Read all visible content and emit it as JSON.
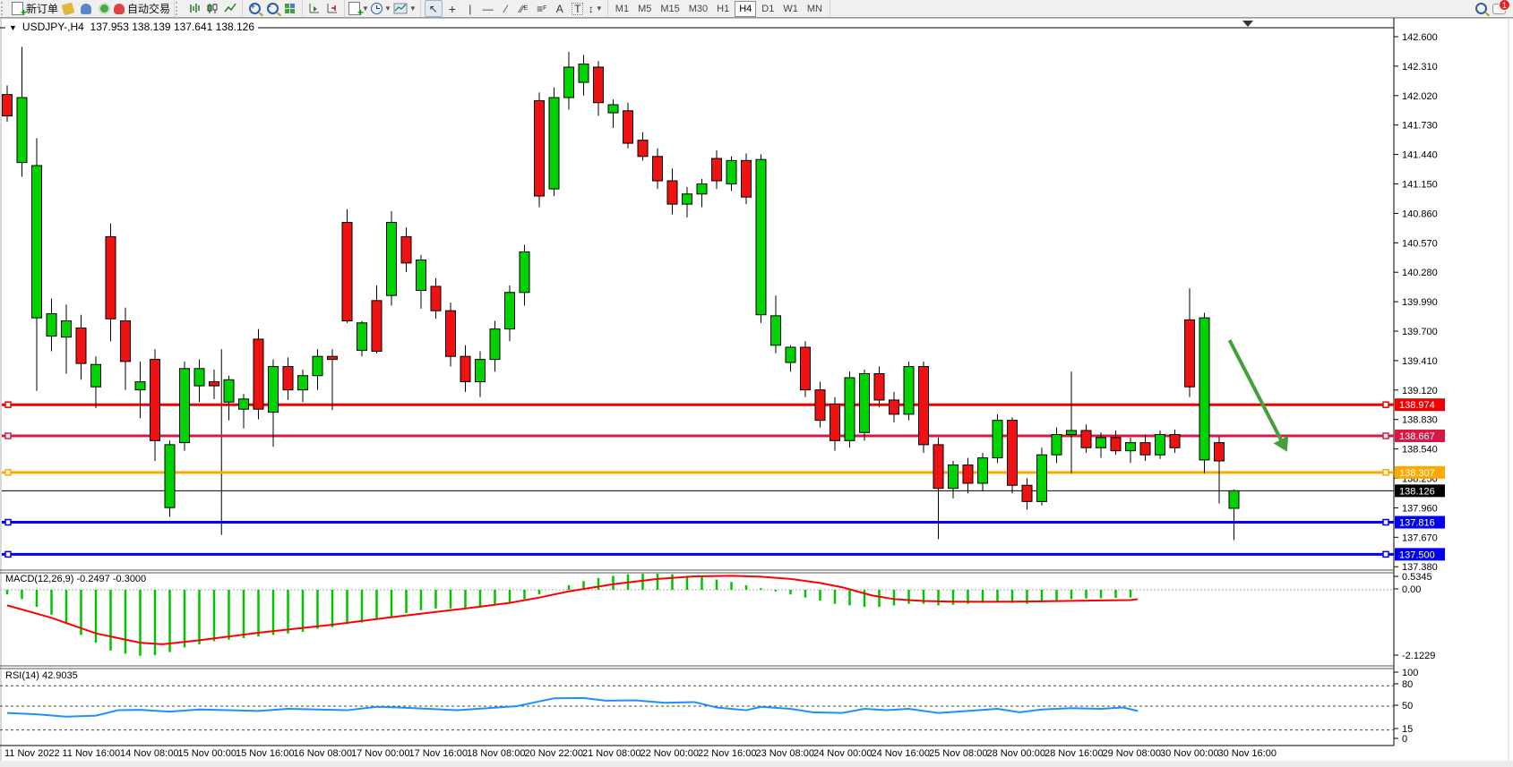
{
  "toolbar": {
    "new_order_label": "新订单",
    "autotrade_label": "自动交易",
    "timeframes": [
      "M1",
      "M5",
      "M15",
      "M30",
      "H1",
      "H4",
      "D1",
      "W1",
      "MN"
    ],
    "active_timeframe": "H4",
    "chat_badge": "1",
    "drawing_tools": {
      "channel_suffix": "E",
      "fibo_suffix": "F",
      "text_tool": "A",
      "label_tool": "T"
    }
  },
  "chart": {
    "symbol_period": "USDJPY-,H4",
    "ohlc_display": "137.953 138.139 137.641 138.126"
  },
  "indicators": {
    "macd": {
      "name": "MACD(12,26,9)",
      "value_main": "-0.2497",
      "value_signal": "-0.3000"
    },
    "rsi": {
      "name": "RSI(14)",
      "value": "42.9035"
    }
  },
  "chart_data": {
    "type": "candlestick",
    "symbol": "USDJPY-",
    "period": "H4",
    "current_bar": {
      "open": 137.953,
      "high": 138.139,
      "low": 137.641,
      "close": 138.126
    },
    "price_axis_labels": [
      "142.600",
      "142.310",
      "142.020",
      "141.730",
      "141.440",
      "141.150",
      "140.860",
      "140.570",
      "140.280",
      "139.990",
      "139.700",
      "139.410",
      "139.120",
      "138.830",
      "138.540",
      "138.250",
      "137.960",
      "137.670",
      "137.380"
    ],
    "time_labels": [
      "11 Nov 2022",
      "11 Nov 16:00",
      "14 Nov 08:00",
      "15 Nov 00:00",
      "15 Nov 16:00",
      "16 Nov 08:00",
      "17 Nov 00:00",
      "17 Nov 16:00",
      "18 Nov 08:00",
      "20 Nov 22:00",
      "21 Nov 08:00",
      "22 Nov 00:00",
      "22 Nov 16:00",
      "23 Nov 08:00",
      "24 Nov 00:00",
      "24 Nov 16:00",
      "25 Nov 08:00",
      "28 Nov 00:00",
      "28 Nov 16:00",
      "29 Nov 08:00",
      "30 Nov 00:00",
      "30 Nov 16:00"
    ],
    "candles": [
      [
        142.03,
        142.12,
        141.76,
        141.82
      ],
      [
        141.36,
        142.5,
        141.22,
        142.0
      ],
      [
        139.83,
        141.6,
        139.11,
        141.33
      ],
      [
        139.65,
        140.02,
        139.5,
        139.87
      ],
      [
        139.64,
        139.96,
        139.28,
        139.8
      ],
      [
        139.73,
        139.86,
        139.22,
        139.38
      ],
      [
        139.15,
        139.45,
        138.94,
        139.37
      ],
      [
        140.63,
        140.76,
        139.6,
        139.82
      ],
      [
        139.8,
        139.93,
        139.12,
        139.4
      ],
      [
        139.12,
        139.4,
        138.84,
        139.2
      ],
      [
        139.42,
        139.52,
        138.42,
        138.62
      ],
      [
        137.96,
        138.62,
        137.87,
        138.58
      ],
      [
        138.6,
        139.4,
        138.52,
        139.33
      ],
      [
        139.16,
        139.42,
        139.0,
        139.33
      ],
      [
        139.2,
        139.32,
        139.03,
        139.16
      ],
      [
        139.0,
        139.26,
        138.82,
        139.22
      ],
      [
        138.93,
        139.08,
        138.74,
        139.03
      ],
      [
        139.62,
        139.72,
        138.83,
        138.93
      ],
      [
        138.9,
        139.42,
        138.56,
        139.35
      ],
      [
        139.35,
        139.44,
        139.02,
        139.12
      ],
      [
        139.12,
        139.32,
        139.0,
        139.26
      ],
      [
        139.26,
        139.52,
        139.12,
        139.45
      ],
      [
        139.45,
        139.52,
        138.92,
        139.42
      ],
      [
        140.77,
        140.9,
        139.78,
        139.8
      ],
      [
        139.51,
        139.8,
        139.45,
        139.78
      ],
      [
        140.0,
        140.15,
        139.48,
        139.5
      ],
      [
        140.05,
        140.88,
        139.95,
        140.77
      ],
      [
        140.63,
        140.72,
        140.28,
        140.37
      ],
      [
        140.1,
        140.45,
        139.92,
        140.4
      ],
      [
        140.14,
        140.22,
        139.82,
        139.9
      ],
      [
        139.9,
        139.98,
        139.35,
        139.45
      ],
      [
        139.45,
        139.56,
        139.1,
        139.2
      ],
      [
        139.2,
        139.5,
        139.05,
        139.42
      ],
      [
        139.42,
        139.8,
        139.3,
        139.72
      ],
      [
        139.72,
        140.15,
        139.6,
        140.08
      ],
      [
        140.08,
        140.55,
        139.95,
        140.48
      ],
      [
        141.97,
        142.05,
        140.92,
        141.03
      ],
      [
        141.1,
        142.1,
        141.03,
        142.0
      ],
      [
        142.0,
        142.45,
        141.88,
        142.3
      ],
      [
        142.15,
        142.42,
        142.02,
        142.33
      ],
      [
        142.3,
        142.36,
        141.82,
        141.95
      ],
      [
        141.85,
        141.98,
        141.7,
        141.93
      ],
      [
        141.87,
        141.95,
        141.5,
        141.55
      ],
      [
        141.58,
        141.66,
        141.38,
        141.42
      ],
      [
        141.42,
        141.5,
        141.1,
        141.18
      ],
      [
        141.18,
        141.3,
        140.85,
        140.95
      ],
      [
        140.95,
        141.12,
        140.82,
        141.05
      ],
      [
        141.05,
        141.2,
        140.92,
        141.15
      ],
      [
        141.4,
        141.48,
        141.1,
        141.18
      ],
      [
        141.15,
        141.42,
        141.08,
        141.38
      ],
      [
        141.38,
        141.45,
        140.95,
        141.02
      ],
      [
        139.86,
        141.44,
        139.78,
        141.39
      ],
      [
        139.56,
        140.05,
        139.48,
        139.85
      ],
      [
        139.39,
        139.56,
        139.3,
        139.54
      ],
      [
        139.54,
        139.6,
        139.05,
        139.12
      ],
      [
        139.12,
        139.2,
        138.75,
        138.82
      ],
      [
        138.98,
        139.05,
        138.52,
        138.62
      ],
      [
        138.62,
        139.3,
        138.55,
        139.24
      ],
      [
        138.7,
        139.32,
        138.62,
        139.28
      ],
      [
        139.28,
        139.35,
        138.95,
        139.02
      ],
      [
        139.02,
        139.1,
        138.8,
        138.88
      ],
      [
        138.88,
        139.4,
        138.82,
        139.35
      ],
      [
        139.35,
        139.4,
        138.5,
        138.58
      ],
      [
        138.58,
        138.65,
        137.65,
        138.15
      ],
      [
        138.15,
        138.42,
        138.05,
        138.38
      ],
      [
        138.38,
        138.45,
        138.1,
        138.2
      ],
      [
        138.2,
        138.5,
        138.12,
        138.45
      ],
      [
        138.45,
        138.88,
        138.4,
        138.82
      ],
      [
        138.82,
        138.85,
        138.1,
        138.18
      ],
      [
        138.18,
        138.25,
        137.94,
        138.02
      ],
      [
        138.02,
        138.55,
        137.98,
        138.48
      ],
      [
        138.48,
        138.75,
        138.4,
        138.68
      ],
      [
        138.68,
        139.3,
        138.3,
        138.72
      ],
      [
        138.72,
        138.78,
        138.5,
        138.55
      ],
      [
        138.55,
        138.7,
        138.45,
        138.65
      ],
      [
        138.65,
        138.72,
        138.48,
        138.52
      ],
      [
        138.52,
        138.65,
        138.4,
        138.6
      ],
      [
        138.6,
        138.68,
        138.42,
        138.48
      ],
      [
        138.48,
        138.72,
        138.44,
        138.68
      ],
      [
        138.68,
        138.73,
        138.5,
        138.55
      ],
      [
        139.81,
        140.12,
        139.05,
        139.15
      ],
      [
        138.43,
        139.88,
        138.3,
        139.83
      ],
      [
        138.6,
        138.66,
        138.0,
        138.42
      ],
      [
        137.953,
        138.139,
        137.641,
        138.126
      ]
    ],
    "hlines": [
      {
        "price": 138.974,
        "label": "138.974",
        "color": "#f00000",
        "width": 3,
        "handles": true
      },
      {
        "price": 138.667,
        "label": "138.667",
        "color": "#d81745",
        "width": 3,
        "handles": true
      },
      {
        "price": 138.307,
        "label": "138.307",
        "color": "#ffa800",
        "width": 3,
        "handles": true
      },
      {
        "price": 138.126,
        "label": "138.126",
        "color": "#000000",
        "width": 1,
        "handles": false
      },
      {
        "price": 137.816,
        "label": "137.816",
        "color": "#0000ee",
        "width": 3,
        "handles": true
      },
      {
        "price": 137.5,
        "label": "137.500",
        "color": "#0000ee",
        "width": 3,
        "handles": true
      }
    ],
    "vline": {
      "bar": 14.5,
      "price_top": 139.52,
      "price_bottom": 137.69
    },
    "arrow": {
      "bar_from": 82.7,
      "price_from": 139.61,
      "bar_to": 86.6,
      "price_to": 138.51,
      "color": "#44a038"
    },
    "macd": {
      "axis_labels": [
        "0.5345",
        "0.00",
        "-2.1229"
      ],
      "histogram": [
        -0.15,
        -0.3,
        -0.55,
        -0.8,
        -1.1,
        -1.45,
        -1.7,
        -1.95,
        -2.05,
        -2.12,
        -2.1,
        -2.0,
        -1.85,
        -1.75,
        -1.65,
        -1.6,
        -1.55,
        -1.5,
        -1.45,
        -1.4,
        -1.35,
        -1.25,
        -1.2,
        -1.1,
        -1.05,
        -0.95,
        -0.85,
        -0.75,
        -0.65,
        -0.6,
        -0.6,
        -0.6,
        -0.55,
        -0.5,
        -0.4,
        -0.3,
        -0.15,
        0.0,
        0.15,
        0.28,
        0.38,
        0.45,
        0.5,
        0.53,
        0.53,
        0.5,
        0.45,
        0.4,
        0.33,
        0.25,
        0.15,
        0.05,
        -0.05,
        -0.15,
        -0.25,
        -0.35,
        -0.45,
        -0.5,
        -0.55,
        -0.55,
        -0.5,
        -0.45,
        -0.45,
        -0.5,
        -0.48,
        -0.45,
        -0.42,
        -0.38,
        -0.42,
        -0.45,
        -0.4,
        -0.35,
        -0.3,
        -0.28,
        -0.27,
        -0.26,
        -0.25
      ],
      "signal": [
        [
          0,
          -0.5
        ],
        [
          3,
          -0.9
        ],
        [
          6,
          -1.4
        ],
        [
          9,
          -1.7
        ],
        [
          10.5,
          -1.75
        ],
        [
          13,
          -1.62
        ],
        [
          17,
          -1.38
        ],
        [
          22,
          -1.12
        ],
        [
          26,
          -0.88
        ],
        [
          31,
          -0.6
        ],
        [
          34,
          -0.42
        ],
        [
          36,
          -0.25
        ],
        [
          38,
          -0.05
        ],
        [
          41,
          0.18
        ],
        [
          44,
          0.35
        ],
        [
          46.5,
          0.43
        ],
        [
          49,
          0.45
        ],
        [
          51,
          0.42
        ],
        [
          53,
          0.35
        ],
        [
          55,
          0.22
        ],
        [
          56.5,
          0.08
        ],
        [
          57.5,
          -0.05
        ],
        [
          58.5,
          -0.18
        ],
        [
          60,
          -0.3
        ],
        [
          62,
          -0.36
        ],
        [
          64,
          -0.38
        ],
        [
          66,
          -0.385
        ],
        [
          68,
          -0.38
        ],
        [
          70,
          -0.37
        ],
        [
          72,
          -0.355
        ],
        [
          74,
          -0.34
        ],
        [
          76,
          -0.33
        ],
        [
          76.5,
          -0.3
        ]
      ]
    },
    "rsi": {
      "levels": [
        80,
        50,
        15
      ],
      "axis_labels": [
        "100",
        "80",
        "50",
        "15",
        "0"
      ],
      "points": [
        [
          0,
          40
        ],
        [
          2,
          38
        ],
        [
          4,
          34.5
        ],
        [
          6,
          36
        ],
        [
          7.5,
          44
        ],
        [
          9,
          44.5
        ],
        [
          11,
          42
        ],
        [
          13,
          45
        ],
        [
          15,
          44
        ],
        [
          17,
          43
        ],
        [
          19,
          46
        ],
        [
          21,
          45
        ],
        [
          23,
          44
        ],
        [
          25,
          49
        ],
        [
          26.5,
          48
        ],
        [
          28.5,
          46
        ],
        [
          30.5,
          44
        ],
        [
          32.5,
          47
        ],
        [
          34.5,
          50
        ],
        [
          36,
          57
        ],
        [
          37,
          61.5
        ],
        [
          39,
          62
        ],
        [
          40.5,
          58
        ],
        [
          42.5,
          58.5
        ],
        [
          44.5,
          55
        ],
        [
          46.5,
          56
        ],
        [
          48,
          48
        ],
        [
          50,
          44
        ],
        [
          51,
          49
        ],
        [
          53,
          46
        ],
        [
          54.5,
          41
        ],
        [
          56.5,
          40
        ],
        [
          58,
          46
        ],
        [
          59.5,
          44
        ],
        [
          61,
          46
        ],
        [
          63,
          40
        ],
        [
          65,
          43
        ],
        [
          67,
          46
        ],
        [
          68.5,
          41
        ],
        [
          70,
          45
        ],
        [
          72,
          47
        ],
        [
          74,
          46
        ],
        [
          75.5,
          48
        ],
        [
          76.5,
          42.9
        ]
      ]
    },
    "colors": {
      "bull": "#00d300",
      "bear": "#ef1212",
      "outline": "#000000",
      "macd_hist": "#00c400",
      "macd_signal": "#ff0000",
      "rsi_line": "#1e90ff"
    },
    "layout_hints": {
      "grid": "off",
      "price_axis": "right",
      "panels": [
        "price",
        "MACD",
        "RSI"
      ]
    }
  }
}
